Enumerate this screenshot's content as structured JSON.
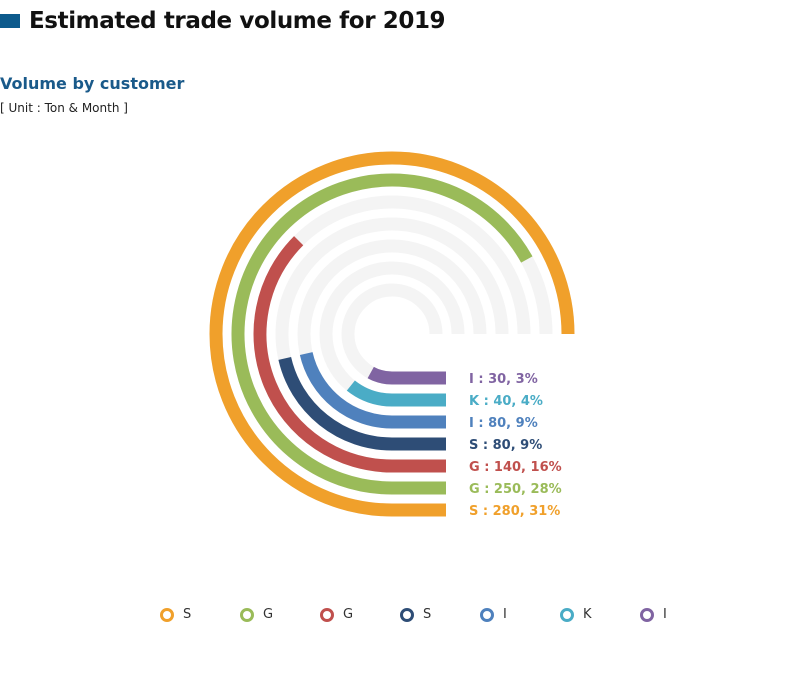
{
  "header": {
    "title": "Estimated trade volume for 2019"
  },
  "subtitle": "Volume by customer",
  "unit": "[ Unit : Ton & Month ]",
  "chart_data": {
    "type": "radial-bar",
    "title": "Volume by customer",
    "unit": "Ton & Month",
    "max_angle_degrees": 270,
    "series": [
      {
        "name": "S",
        "value": 280,
        "percent": 31,
        "label": "S : 280, 31%",
        "color": "#f0a02b"
      },
      {
        "name": "G",
        "value": 250,
        "percent": 28,
        "label": "G : 250, 28%",
        "color": "#9abb59"
      },
      {
        "name": "G",
        "value": 140,
        "percent": 16,
        "label": "G : 140, 16%",
        "color": "#c0504d"
      },
      {
        "name": "S",
        "value": 80,
        "percent": 9,
        "label": "S : 80, 9%",
        "color": "#2e4d76"
      },
      {
        "name": "I",
        "value": 80,
        "percent": 9,
        "label": "I : 80, 9%",
        "color": "#4f81bd"
      },
      {
        "name": "K",
        "value": 40,
        "percent": 4,
        "label": "K : 40, 4%",
        "color": "#4aacc6"
      },
      {
        "name": "I",
        "value": 30,
        "percent": 3,
        "label": "I : 30, 3%",
        "color": "#8064a2"
      }
    ],
    "legend": {
      "position": "bottom",
      "items": [
        "S",
        "G",
        "G",
        "S",
        "I",
        "K",
        "I"
      ]
    }
  }
}
